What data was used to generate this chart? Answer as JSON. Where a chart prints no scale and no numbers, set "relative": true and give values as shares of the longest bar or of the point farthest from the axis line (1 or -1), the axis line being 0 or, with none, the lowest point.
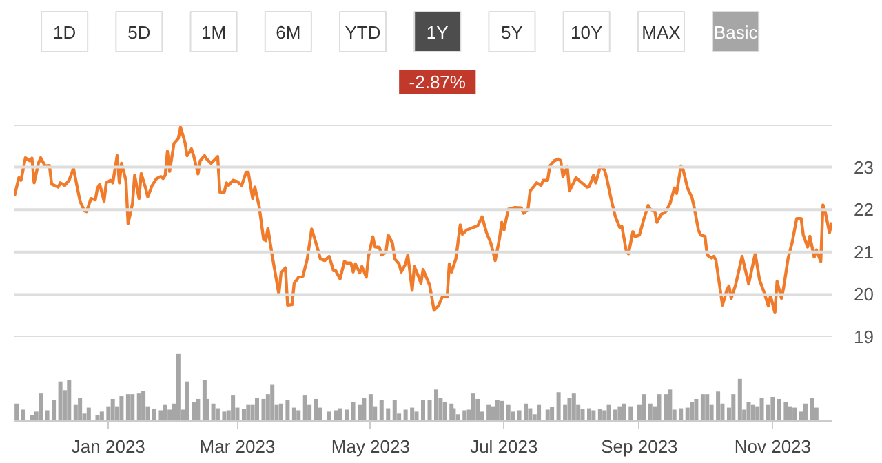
{
  "chart_data": [
    {
      "type": "other",
      "categories": [
        "1D",
        "5D",
        "1M",
        "6M",
        "YTD",
        "1Y",
        "5Y",
        "10Y",
        "MAX",
        "Basic"
      ],
      "colors": [
        "#ffffff",
        "#ffffff",
        "#ffffff",
        "#ffffff",
        "#ffffff",
        "#4d4d4d",
        "#ffffff",
        "#ffffff",
        "#ffffff",
        "#a6a6a6"
      ],
      "annotations": [
        "-2.87%"
      ]
    },
    {
      "type": "line",
      "xlim": [
        "2022-11-19",
        "2023-11-28"
      ],
      "ylim": [
        19,
        24
      ],
      "yticks": [
        19,
        20,
        21,
        22,
        23,
        {
          "value": 24,
          "label": null
        }
      ],
      "grid": "y",
      "tick_labels": "y",
      "x": [
        "2022-11-19",
        "2022-11-21",
        "2022-11-22",
        "2022-11-24",
        "2022-11-26",
        "2022-11-27",
        "2022-11-28",
        "2022-11-30",
        "2022-12-01",
        "2022-12-03",
        "2022-12-05",
        "2022-12-06",
        "2022-12-09",
        "2022-12-10",
        "2022-12-12",
        "2022-12-14",
        "2022-12-16",
        "2022-12-19",
        "2022-12-21",
        "2022-12-22",
        "2022-12-24",
        "2022-12-26",
        "2022-12-27",
        "2022-12-28",
        "2022-12-30",
        "2022-12-31",
        "2023-01-02",
        "2023-01-03",
        "2023-01-05",
        "2023-01-06",
        "2023-01-07",
        "2023-01-09",
        "2023-01-10",
        "2023-01-12",
        "2023-01-13",
        "2023-01-15",
        "2023-01-16",
        "2023-01-18",
        "2023-01-19",
        "2023-01-21",
        "2023-01-23",
        "2023-01-25",
        "2023-01-26",
        "2023-01-27",
        "2023-01-28",
        "2023-01-29",
        "2023-01-31",
        "2023-02-02",
        "2023-02-03",
        "2023-02-05",
        "2023-02-06",
        "2023-02-08",
        "2023-02-09",
        "2023-02-11",
        "2023-02-12",
        "2023-02-14",
        "2023-02-15",
        "2023-02-17",
        "2023-02-20",
        "2023-02-21",
        "2023-02-23",
        "2023-02-24",
        "2023-02-25",
        "2023-02-27",
        "2023-03-01",
        "2023-03-03",
        "2023-03-05",
        "2023-03-06",
        "2023-03-08",
        "2023-03-09",
        "2023-03-11",
        "2023-03-13",
        "2023-03-14",
        "2023-03-15",
        "2023-03-17",
        "2023-03-20",
        "2023-03-21",
        "2023-03-23",
        "2023-03-24",
        "2023-03-26",
        "2023-03-27",
        "2023-03-29",
        "2023-03-31",
        "2023-04-02",
        "2023-04-04",
        "2023-04-06",
        "2023-04-08",
        "2023-04-10",
        "2023-04-12",
        "2023-04-14",
        "2023-04-15",
        "2023-04-17",
        "2023-04-19",
        "2023-04-20",
        "2023-04-22",
        "2023-04-23",
        "2023-04-24",
        "2023-04-26",
        "2023-04-27",
        "2023-04-29",
        "2023-04-30",
        "2023-05-02",
        "2023-05-03",
        "2023-05-05",
        "2023-05-06",
        "2023-05-08",
        "2023-05-09",
        "2023-05-11",
        "2023-05-12",
        "2023-05-14",
        "2023-05-15",
        "2023-05-17",
        "2023-05-18",
        "2023-05-20",
        "2023-05-21",
        "2023-05-23",
        "2023-05-24",
        "2023-05-25",
        "2023-05-28",
        "2023-05-30",
        "2023-06-01",
        "2023-06-03",
        "2023-06-05",
        "2023-06-06",
        "2023-06-07",
        "2023-06-09",
        "2023-06-11",
        "2023-06-12",
        "2023-06-14",
        "2023-06-17",
        "2023-06-19",
        "2023-06-21",
        "2023-06-23",
        "2023-06-25",
        "2023-06-27",
        "2023-06-29",
        "2023-06-30",
        "2023-07-01",
        "2023-07-03",
        "2023-07-06",
        "2023-07-09",
        "2023-07-10",
        "2023-07-12",
        "2023-07-13",
        "2023-07-16",
        "2023-07-18",
        "2023-07-19",
        "2023-07-21",
        "2023-07-22",
        "2023-07-24",
        "2023-07-26",
        "2023-07-27",
        "2023-07-28",
        "2023-07-30",
        "2023-07-31",
        "2023-08-03",
        "2023-08-05",
        "2023-08-08",
        "2023-08-09",
        "2023-08-11",
        "2023-08-12",
        "2023-08-14",
        "2023-08-16",
        "2023-08-17",
        "2023-08-19",
        "2023-08-21",
        "2023-08-23",
        "2023-08-24",
        "2023-08-26",
        "2023-08-27",
        "2023-08-29",
        "2023-08-30",
        "2023-09-01",
        "2023-09-03",
        "2023-09-05",
        "2023-09-06",
        "2023-09-08",
        "2023-09-09",
        "2023-09-11",
        "2023-09-13",
        "2023-09-15",
        "2023-09-17",
        "2023-09-18",
        "2023-09-20",
        "2023-09-21",
        "2023-09-23",
        "2023-09-25",
        "2023-09-26",
        "2023-09-28",
        "2023-09-29",
        "2023-10-01",
        "2023-10-02",
        "2023-10-04",
        "2023-10-05",
        "2023-10-06",
        "2023-10-09",
        "2023-10-11",
        "2023-10-12",
        "2023-10-13",
        "2023-10-15",
        "2023-10-18",
        "2023-10-21",
        "2023-10-24",
        "2023-10-26",
        "2023-10-28",
        "2023-10-30",
        "2023-10-31",
        "2023-11-02",
        "2023-11-03",
        "2023-11-05",
        "2023-11-06",
        "2023-11-08",
        "2023-11-10",
        "2023-11-12",
        "2023-11-14",
        "2023-11-15",
        "2023-11-17",
        "2023-11-18",
        "2023-11-20",
        "2023-11-21",
        "2023-11-23",
        "2023-11-24",
        "2023-11-25",
        "2023-11-27",
        "2023-11-28"
      ],
      "series": [
        {
          "color": "#f07b2b",
          "values": [
            22.32,
            22.75,
            22.69,
            23.22,
            23.15,
            23.21,
            22.63,
            23.1,
            23.22,
            23.03,
            23.04,
            22.6,
            22.53,
            22.63,
            22.57,
            22.69,
            22.97,
            22.2,
            21.97,
            21.95,
            22.26,
            22.23,
            22.51,
            22.6,
            22.2,
            22.63,
            22.69,
            22.63,
            23.27,
            22.63,
            23.09,
            22.69,
            21.67,
            22.14,
            22.81,
            22.26,
            22.85,
            22.51,
            22.3,
            22.57,
            22.73,
            22.78,
            22.73,
            22.81,
            23.37,
            22.9,
            23.56,
            23.68,
            23.94,
            23.59,
            23.27,
            23.43,
            23.27,
            22.84,
            23.15,
            23.27,
            23.19,
            23.09,
            23.25,
            22.41,
            22.41,
            22.63,
            22.57,
            22.69,
            22.66,
            22.57,
            22.88,
            22.88,
            22.26,
            22.53,
            22.07,
            21.3,
            21.27,
            21.56,
            20.9,
            20.01,
            20.51,
            20.63,
            19.75,
            19.76,
            20.26,
            20.41,
            20.43,
            20.84,
            21.54,
            21.21,
            20.84,
            20.8,
            20.9,
            20.56,
            20.56,
            20.37,
            20.78,
            20.74,
            20.74,
            20.53,
            20.72,
            20.51,
            20.66,
            20.41,
            20.9,
            21.36,
            21.12,
            21.11,
            20.93,
            20.99,
            21.4,
            21.21,
            20.84,
            20.72,
            20.53,
            20.72,
            20.93,
            20.1,
            20.66,
            20.41,
            20.26,
            20.59,
            20.22,
            19.63,
            19.73,
            19.97,
            19.94,
            20.72,
            20.53,
            20.84,
            21.64,
            21.42,
            21.52,
            21.58,
            21.62,
            21.83,
            21.46,
            21.21,
            20.8,
            21.33,
            21.7,
            21.52,
            22.01,
            22.05,
            22.04,
            21.91,
            22.01,
            22.44,
            22.63,
            22.57,
            22.69,
            22.69,
            23.03,
            23.15,
            23.19,
            23.15,
            22.78,
            23.0,
            22.44,
            22.75,
            22.66,
            22.53,
            22.54,
            22.81,
            22.63,
            23.0,
            22.94,
            22.75,
            22.26,
            21.83,
            21.58,
            21.6,
            21.02,
            20.96,
            21.48,
            21.36,
            21.4,
            21.77,
            22.1,
            22.01,
            21.97,
            21.7,
            21.89,
            21.95,
            22.14,
            22.51,
            22.38,
            23.03,
            22.94,
            22.51,
            22.29,
            22.07,
            21.52,
            21.4,
            21.37,
            20.93,
            20.86,
            20.9,
            20.81,
            19.75,
            20.1,
            20.2,
            19.91,
            20.22,
            20.9,
            20.25,
            20.96,
            20.34,
            20.06,
            19.73,
            19.97,
            19.57,
            20.31,
            19.91,
            20.16,
            20.84,
            21.25,
            21.79,
            21.79,
            21.4,
            21.12,
            21.37,
            20.88,
            21.05,
            20.78,
            22.11,
            21.95,
            21.46,
            21.7
          ]
        }
      ]
    },
    {
      "type": "bar",
      "relative": true,
      "color": "#a6a6a6",
      "xlim": [
        "2022-11-19",
        "2023-11-28"
      ],
      "tick_labels": "x",
      "xticks": [
        {
          "value": "2023-01-01",
          "label": "Jan 2023"
        },
        {
          "value": "2023-03-01",
          "label": "Mar 2023"
        },
        {
          "value": "2023-05-01",
          "label": "May 2023"
        },
        {
          "value": "2023-07-01",
          "label": "Jul 2023"
        },
        {
          "value": "2023-09-01",
          "label": "Sep 2023"
        },
        {
          "value": "2023-11-01",
          "label": "Nov 2023"
        }
      ],
      "x": [
        "2022-11-20",
        "2022-11-23",
        "2022-11-27",
        "2022-11-29",
        "2022-12-01",
        "2022-12-04",
        "2022-12-07",
        "2022-12-10",
        "2022-12-12",
        "2022-12-14",
        "2022-12-17",
        "2022-12-19",
        "2022-12-21",
        "2022-12-23",
        "2022-12-27",
        "2022-12-29",
        "2023-01-01",
        "2023-01-03",
        "2023-01-05",
        "2023-01-07",
        "2023-01-10",
        "2023-01-12",
        "2023-01-15",
        "2023-01-17",
        "2023-01-19",
        "2023-01-22",
        "2023-01-25",
        "2023-01-27",
        "2023-01-29",
        "2023-01-31",
        "2023-02-02",
        "2023-02-04",
        "2023-02-06",
        "2023-02-09",
        "2023-02-11",
        "2023-02-14",
        "2023-02-15",
        "2023-02-18",
        "2023-02-20",
        "2023-02-23",
        "2023-02-25",
        "2023-02-27",
        "2023-03-01",
        "2023-03-04",
        "2023-03-06",
        "2023-03-08",
        "2023-03-10",
        "2023-03-13",
        "2023-03-15",
        "2023-03-17",
        "2023-03-19",
        "2023-03-21",
        "2023-03-24",
        "2023-03-27",
        "2023-03-29",
        "2023-04-01",
        "2023-04-03",
        "2023-04-06",
        "2023-04-08",
        "2023-04-12",
        "2023-04-15",
        "2023-04-17",
        "2023-04-20",
        "2023-04-23",
        "2023-04-26",
        "2023-04-28",
        "2023-05-01",
        "2023-05-03",
        "2023-05-06",
        "2023-05-09",
        "2023-05-12",
        "2023-05-14",
        "2023-05-17",
        "2023-05-20",
        "2023-05-22",
        "2023-05-25",
        "2023-05-28",
        "2023-05-31",
        "2023-06-02",
        "2023-06-04",
        "2023-06-07",
        "2023-06-08",
        "2023-06-10",
        "2023-06-13",
        "2023-06-15",
        "2023-06-17",
        "2023-06-19",
        "2023-06-21",
        "2023-06-24",
        "2023-06-26",
        "2023-06-28",
        "2023-06-30",
        "2023-07-03",
        "2023-07-05",
        "2023-07-08",
        "2023-07-11",
        "2023-07-13",
        "2023-07-15",
        "2023-07-17",
        "2023-07-21",
        "2023-07-23",
        "2023-07-26",
        "2023-07-29",
        "2023-07-31",
        "2023-08-02",
        "2023-08-04",
        "2023-08-06",
        "2023-08-09",
        "2023-08-11",
        "2023-08-14",
        "2023-08-16",
        "2023-08-18",
        "2023-08-21",
        "2023-08-23",
        "2023-08-25",
        "2023-08-28",
        "2023-09-01",
        "2023-09-03",
        "2023-09-06",
        "2023-09-08",
        "2023-09-10",
        "2023-09-13",
        "2023-09-15",
        "2023-09-17",
        "2023-09-20",
        "2023-09-23",
        "2023-09-25",
        "2023-09-27",
        "2023-09-30",
        "2023-10-02",
        "2023-10-04",
        "2023-10-07",
        "2023-10-09",
        "2023-10-12",
        "2023-10-14",
        "2023-10-17",
        "2023-10-19",
        "2023-10-21",
        "2023-10-23",
        "2023-10-25",
        "2023-10-27",
        "2023-10-30",
        "2023-11-01",
        "2023-11-04",
        "2023-11-07",
        "2023-11-09",
        "2023-11-11",
        "2023-11-14",
        "2023-11-16",
        "2023-11-19",
        "2023-11-21"
      ],
      "values": [
        0.26,
        0.17,
        0.09,
        0.14,
        0.41,
        0.16,
        0.31,
        0.59,
        0.46,
        0.61,
        0.24,
        0.35,
        0.11,
        0.2,
        0.09,
        0.14,
        0.22,
        0.33,
        0.22,
        0.37,
        0.4,
        0.4,
        0.41,
        0.45,
        0.22,
        0.18,
        0.16,
        0.24,
        0.17,
        0.26,
        1,
        0.17,
        0.59,
        0.28,
        0.33,
        0.61,
        0.33,
        0.26,
        0.19,
        0.14,
        0.16,
        0.38,
        0.2,
        0.18,
        0.24,
        0.24,
        0.35,
        0.33,
        0.4,
        0.54,
        0.24,
        0.26,
        0.31,
        0.2,
        0.16,
        0.38,
        0.24,
        0.33,
        0.2,
        0.14,
        0.16,
        0.19,
        0.17,
        0.28,
        0.24,
        0.34,
        0.4,
        0.22,
        0.31,
        0.19,
        0.31,
        0.11,
        0.17,
        0.2,
        0.14,
        0.31,
        0.31,
        0.47,
        0.35,
        0.28,
        0.26,
        0.19,
        0.1,
        0.16,
        0.17,
        0.41,
        0.33,
        0.14,
        0.24,
        0.22,
        0.31,
        0.3,
        0.24,
        0.14,
        0.16,
        0.26,
        0.19,
        0.1,
        0.24,
        0.17,
        0.21,
        0.43,
        0.24,
        0.34,
        0.41,
        0.24,
        0.18,
        0.19,
        0.16,
        0.18,
        0.16,
        0.24,
        0.17,
        0.22,
        0.26,
        0.22,
        0.24,
        0.4,
        0.26,
        0.22,
        0.4,
        0.4,
        0.47,
        0.17,
        0.19,
        0.2,
        0.28,
        0.33,
        0.4,
        0.4,
        0.24,
        0.44,
        0.26,
        0.2,
        0.4,
        0.63,
        0.17,
        0.28,
        0.24,
        0.22,
        0.34,
        0.24,
        0.36,
        0.33,
        0.28,
        0.22,
        0.2,
        0.14,
        0.26,
        0.34,
        0.2
      ]
    }
  ]
}
